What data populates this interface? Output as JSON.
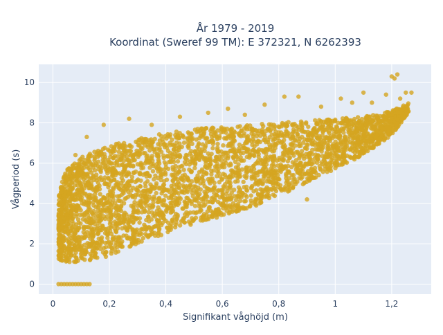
{
  "chart_data": {
    "type": "scatter",
    "title_lines": [
      "År 1979 - 2019",
      "Koordinat (Sweref 99 TM): E 372321, N 6262393"
    ],
    "xlabel": "Signifikant våghöjd (m)",
    "ylabel": "Vågperiod (s)",
    "xlim": [
      -0.05,
      1.34
    ],
    "ylim": [
      -0.5,
      10.9
    ],
    "x_ticks": [
      0,
      0.2,
      0.4,
      0.6,
      0.8,
      1,
      1.2
    ],
    "x_tick_labels": [
      "0",
      "0,2",
      "0,4",
      "0,6",
      "0,8",
      "1",
      "1,2"
    ],
    "y_ticks": [
      0,
      2,
      4,
      6,
      8,
      10
    ],
    "y_tick_labels": [
      "0",
      "2",
      "4",
      "6",
      "8",
      "10"
    ],
    "grid": true,
    "colors": {
      "marker": "#d4a520",
      "plot_bg": "#e5ecf6",
      "grid": "#ffffff",
      "text": "#2a3f5f"
    },
    "density_envelope": {
      "x": [
        0.02,
        0.05,
        0.1,
        0.15,
        0.2,
        0.3,
        0.4,
        0.5,
        0.6,
        0.7,
        0.8,
        0.9,
        1.0,
        1.1,
        1.2,
        1.26
      ],
      "y_low": [
        1.2,
        1.1,
        1.1,
        1.2,
        1.4,
        2.0,
        2.5,
        3.0,
        3.4,
        3.8,
        4.4,
        5.0,
        5.7,
        6.4,
        7.4,
        8.5
      ],
      "y_high": [
        4.5,
        5.8,
        6.3,
        6.6,
        6.9,
        7.2,
        7.5,
        7.7,
        7.8,
        7.9,
        8.0,
        8.1,
        8.2,
        8.3,
        8.6,
        9.0
      ]
    },
    "zero_period_points": {
      "x": [
        0.02,
        0.03,
        0.04,
        0.05,
        0.06,
        0.07,
        0.08,
        0.09,
        0.1,
        0.11,
        0.12,
        0.13
      ],
      "y": [
        0,
        0,
        0,
        0,
        0,
        0,
        0,
        0,
        0,
        0,
        0,
        0
      ]
    },
    "sparse_points": {
      "x": [
        0.08,
        0.12,
        0.18,
        0.27,
        0.35,
        0.45,
        0.55,
        0.62,
        0.68,
        0.75,
        0.82,
        0.87,
        0.95,
        1.02,
        1.06,
        1.1,
        1.13,
        1.18,
        1.2,
        1.21,
        1.22,
        1.23,
        1.25,
        1.27,
        0.14,
        0.2,
        0.3,
        0.38,
        0.5,
        0.65,
        0.72,
        0.9,
        0.26,
        0.33,
        0.42,
        0.58
      ],
      "y": [
        6.4,
        7.3,
        7.9,
        8.2,
        7.9,
        8.3,
        8.5,
        8.7,
        8.4,
        8.9,
        9.3,
        9.3,
        8.8,
        9.2,
        9.0,
        9.5,
        9.0,
        9.4,
        10.3,
        10.2,
        10.4,
        9.2,
        9.5,
        9.5,
        3.5,
        2.8,
        3.6,
        4.1,
        3.2,
        3.6,
        3.9,
        4.2,
        2.4,
        2.7,
        3.0,
        3.3
      ]
    }
  }
}
